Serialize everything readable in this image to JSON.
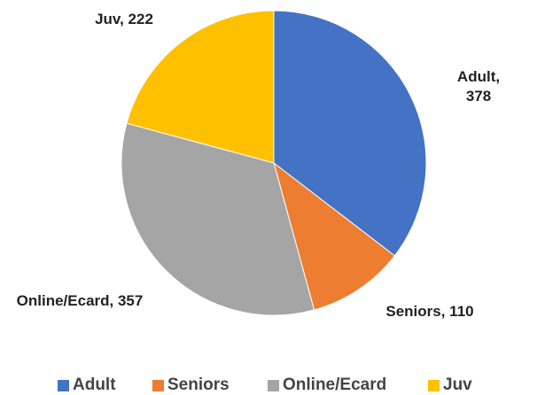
{
  "chart_data": {
    "type": "pie",
    "categories": [
      "Adult",
      "Seniors",
      "Online/Ecard",
      "Juv"
    ],
    "values": [
      378,
      110,
      357,
      222
    ],
    "value_labels": [
      "Adult, 378",
      "Seniors, 110",
      "Online/Ecard, 357",
      "Juv, 222"
    ],
    "colors": [
      "#4472c4",
      "#ed7d31",
      "#a5a5a5",
      "#ffc000"
    ],
    "legend": "bottom"
  }
}
